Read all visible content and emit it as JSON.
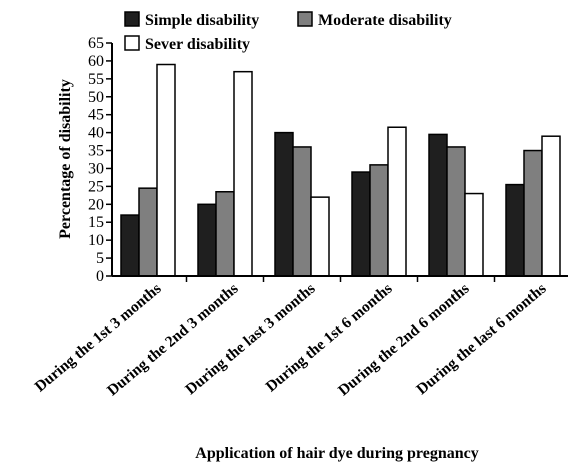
{
  "chart_data": {
    "type": "bar",
    "title": "",
    "xlabel": "Application of hair dye during pregnancy",
    "ylabel": "Percentage of disability",
    "ylim": [
      0,
      65
    ],
    "yticks": [
      "0",
      "5",
      "10",
      "15",
      "20",
      "25",
      "30",
      "35",
      "40",
      "45",
      "50",
      "55",
      "60",
      "65"
    ],
    "categories": [
      "During the 1st 3 months",
      "During the 2nd 3 months",
      "During the last 3 months",
      "During the 1st 6 months",
      "During the 2nd 6 months",
      "During the last 6 months"
    ],
    "series": [
      {
        "name": "Simple disability",
        "color": "#1f1f1f",
        "values": [
          17,
          20,
          40,
          29,
          39.5,
          25.5
        ]
      },
      {
        "name": "Moderate disability",
        "color": "#7f7f7f",
        "values": [
          24.5,
          23.5,
          36,
          31,
          36,
          35
        ]
      },
      {
        "name": "Sever disability",
        "color": "#ffffff",
        "values": [
          59,
          57,
          22,
          41.5,
          23,
          39
        ]
      }
    ],
    "grid": false,
    "legend_position": "top"
  }
}
